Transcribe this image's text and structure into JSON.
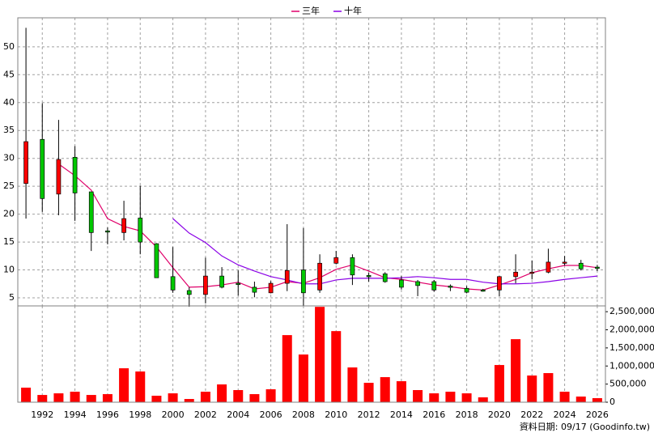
{
  "chart_data": [
    {
      "type": "candlestick",
      "up_color": "#ff0000",
      "down_color": "#00c800",
      "x": [
        1991,
        1992,
        1993,
        1994,
        1995,
        1996,
        1997,
        1998,
        1999,
        2000,
        2001,
        2002,
        2003,
        2004,
        2005,
        2006,
        2007,
        2008,
        2009,
        2010,
        2011,
        2012,
        2013,
        2014,
        2015,
        2016,
        2017,
        2018,
        2019,
        2020,
        2021,
        2022,
        2023,
        2024,
        2025,
        2026
      ],
      "open": [
        25.5,
        33.4,
        23.6,
        30.2,
        24.0,
        17.0,
        16.7,
        19.3,
        14.7,
        8.8,
        6.3,
        5.6,
        8.9,
        7.6,
        6.9,
        5.9,
        7.6,
        10.0,
        6.4,
        11.2,
        12.2,
        9.0,
        9.3,
        8.2,
        7.9,
        7.9,
        7.1,
        6.7,
        6.4,
        6.4,
        8.8,
        9.4,
        9.6,
        11.2,
        11.2,
        10.5
      ],
      "high": [
        53.4,
        39.9,
        36.9,
        32.2,
        24.0,
        17.6,
        22.4,
        25.1,
        14.8,
        14.1,
        6.9,
        12.2,
        10.5,
        9.9,
        7.9,
        8.0,
        18.2,
        17.5,
        12.8,
        13.4,
        12.8,
        9.5,
        9.6,
        8.9,
        8.2,
        8.2,
        7.4,
        7.1,
        6.6,
        8.9,
        12.8,
        11.7,
        13.8,
        12.5,
        11.8,
        10.9
      ],
      "low": [
        19.2,
        20.4,
        19.8,
        18.8,
        13.4,
        14.6,
        15.3,
        12.8,
        8.6,
        5.9,
        3.4,
        4.0,
        6.7,
        5.4,
        5.1,
        5.8,
        6.2,
        3.6,
        5.9,
        11.0,
        7.3,
        7.9,
        7.7,
        6.5,
        5.3,
        6.1,
        6.2,
        5.8,
        6.1,
        5.3,
        7.6,
        8.3,
        9.4,
        10.8,
        9.9,
        9.8
      ],
      "close": [
        33.0,
        22.8,
        29.8,
        23.8,
        16.7,
        16.8,
        19.2,
        15.0,
        8.6,
        6.4,
        5.6,
        8.9,
        6.9,
        7.4,
        6.0,
        7.6,
        9.9,
        5.9,
        11.2,
        12.2,
        9.1,
        8.9,
        7.9,
        6.9,
        7.2,
        6.4,
        7.0,
        6.0,
        6.3,
        8.8,
        9.6,
        9.6,
        11.4,
        11.4,
        10.2,
        10.3
      ],
      "series": [
        {
          "name": "三年",
          "color": "#e0006a",
          "values": [
            null,
            null,
            29.0,
            26.9,
            24.3,
            19.2,
            17.8,
            17.0,
            14.1,
            10.4,
            6.9,
            7.0,
            7.3,
            7.8,
            6.6,
            6.9,
            7.9,
            7.6,
            8.6,
            10.1,
            10.9,
            9.8,
            8.6,
            8.3,
            7.8,
            7.3,
            7.0,
            6.6,
            6.4,
            7.3,
            8.3,
            9.5,
            10.2,
            10.8,
            10.8,
            10.4
          ]
        },
        {
          "name": "十年",
          "color": "#8a00e6",
          "values": [
            null,
            null,
            null,
            null,
            null,
            null,
            null,
            null,
            null,
            19.2,
            16.6,
            14.9,
            12.5,
            10.9,
            9.8,
            8.8,
            8.2,
            7.5,
            7.5,
            8.2,
            8.5,
            8.5,
            8.5,
            8.6,
            8.8,
            8.6,
            8.3,
            8.3,
            7.8,
            7.5,
            7.5,
            7.6,
            7.9,
            8.3,
            8.6,
            8.9
          ]
        }
      ],
      "xlim": [
        1990.5,
        2026.5
      ],
      "ylim": [
        3.55,
        55.2
      ],
      "yticks": [
        5,
        10,
        15,
        20,
        25,
        30,
        35,
        40,
        45,
        50
      ],
      "grid": true
    },
    {
      "type": "bar",
      "color": "#ff0000",
      "x": [
        1991,
        1992,
        1993,
        1994,
        1995,
        1996,
        1997,
        1998,
        1999,
        2000,
        2001,
        2002,
        2003,
        2004,
        2005,
        2006,
        2007,
        2008,
        2009,
        2010,
        2011,
        2012,
        2013,
        2014,
        2015,
        2016,
        2017,
        2018,
        2019,
        2020,
        2021,
        2022,
        2023,
        2024,
        2025,
        2026
      ],
      "values": [
        402000,
        200000,
        245000,
        290000,
        200000,
        223000,
        937000,
        848000,
        179000,
        245000,
        89000,
        290000,
        491000,
        335000,
        223000,
        357000,
        1853000,
        1317000,
        2634000,
        1964000,
        960000,
        536000,
        692000,
        580000,
        335000,
        245000,
        290000,
        245000,
        134000,
        1027000,
        1741000,
        737000,
        804000,
        290000,
        156000,
        112000
      ],
      "xlim": [
        1990.5,
        2026.5
      ],
      "xticks": [
        1992,
        1994,
        1996,
        1998,
        2000,
        2002,
        2004,
        2006,
        2008,
        2010,
        2012,
        2014,
        2016,
        2018,
        2020,
        2022,
        2024,
        2026
      ],
      "ylim": [
        0,
        2660000
      ],
      "yticks": [
        {
          "value": 0,
          "label": "0"
        },
        {
          "value": 500000,
          "label": "500,000"
        },
        {
          "value": 1000000,
          "label": "1,000,000"
        },
        {
          "value": 1500000,
          "label": "1,500,000"
        },
        {
          "value": 2000000,
          "label": "2,000,000"
        },
        {
          "value": 2500000,
          "label": "2,500,000"
        }
      ],
      "grid": true
    }
  ],
  "footer": "資料日期: 09/17 (Goodinfo.tw)"
}
